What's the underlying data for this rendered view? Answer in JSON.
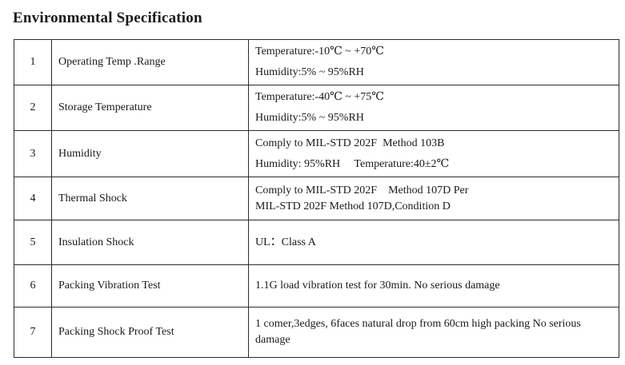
{
  "title": "Environmental Specification",
  "rows": [
    {
      "no": "1",
      "name": "Operating Temp .Range",
      "lines": [
        "Temperature:-10℃ ~ +70℃",
        "Humidity:5% ~ 95%RH"
      ]
    },
    {
      "no": "2",
      "name": "Storage Temperature",
      "lines": [
        "Temperature:-40℃ ~ +75℃",
        "Humidity:5% ~ 95%RH"
      ]
    },
    {
      "no": "3",
      "name": "Humidity",
      "lines": [
        "Comply to MIL-STD 202F  Method 103B",
        "Humidity: 95%RH     Temperature:40±2℃"
      ]
    },
    {
      "no": "4",
      "name": "Thermal Shock",
      "lines": [
        "Comply to MIL-STD 202F    Method 107D Per",
        "MIL-STD 202F Method 107D,Condition D"
      ]
    },
    {
      "no": "5",
      "name": "Insulation Shock",
      "lines": [
        "UL：Class A"
      ]
    },
    {
      "no": "6",
      "name": "Packing Vibration Test",
      "lines": [
        "1.1G load vibration test for 30min. No serious damage"
      ]
    },
    {
      "no": "7",
      "name": "Packing Shock Proof Test",
      "lines": [
        "1 comer,3edges, 6faces natural drop from 60cm high packing No serious damage"
      ]
    }
  ]
}
